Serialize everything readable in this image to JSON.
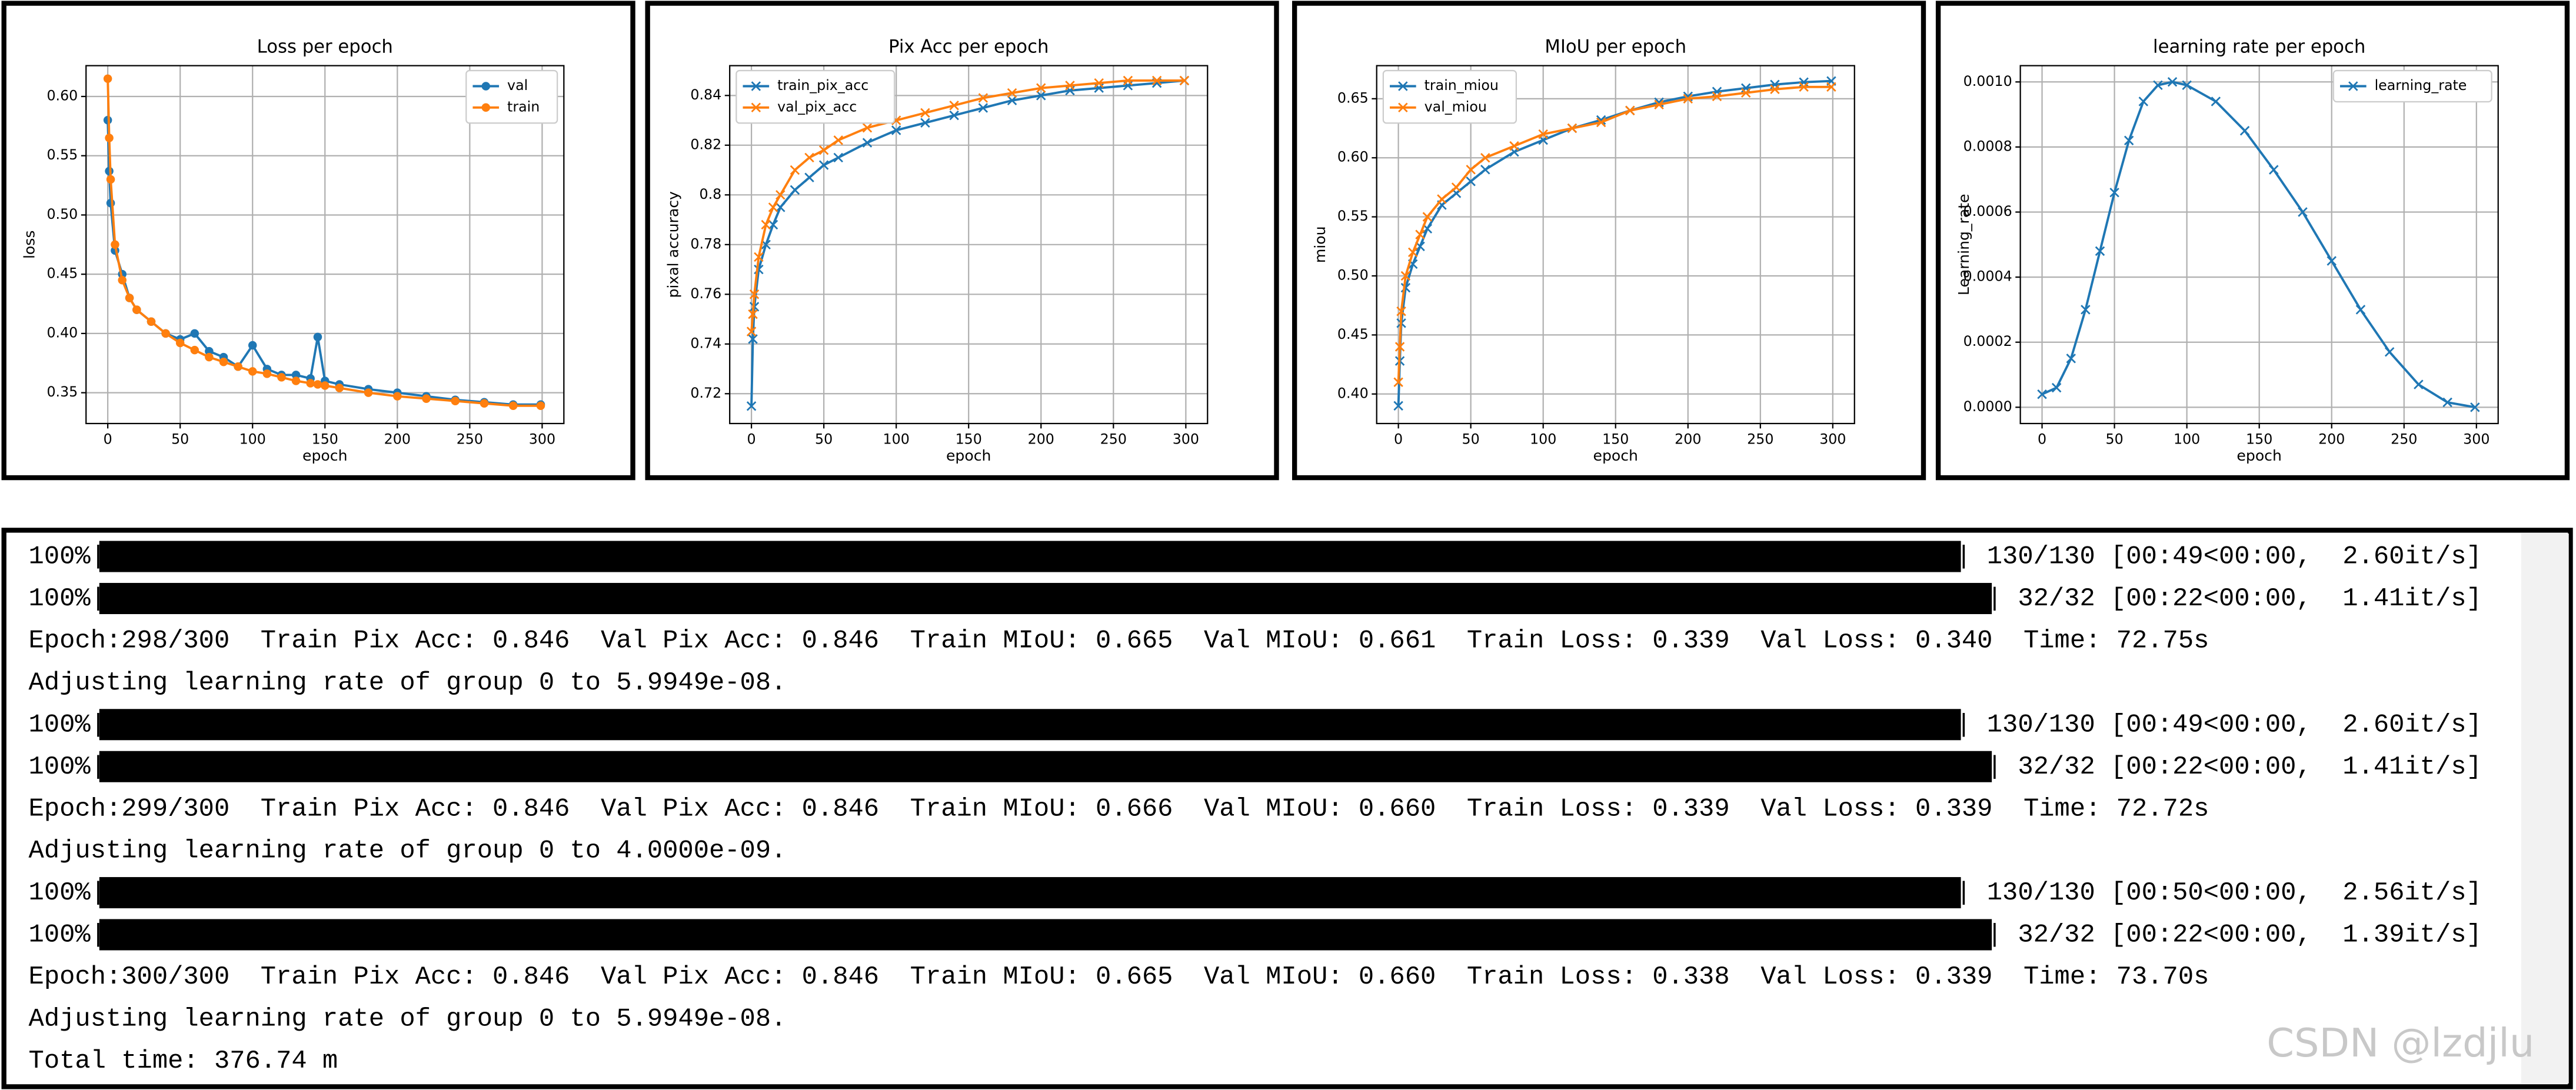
{
  "chart_data": [
    {
      "type": "line",
      "title": "Loss per epoch",
      "xlabel": "epoch",
      "ylabel": "loss",
      "x": [
        0,
        1,
        2,
        5,
        10,
        15,
        20,
        30,
        40,
        50,
        60,
        70,
        80,
        90,
        100,
        110,
        120,
        130,
        140,
        145,
        150,
        160,
        180,
        200,
        220,
        240,
        260,
        280,
        299
      ],
      "series": [
        {
          "name": "val",
          "color": "#1f77b4",
          "marker": "o",
          "values": [
            0.58,
            0.537,
            0.51,
            0.47,
            0.45,
            0.43,
            0.42,
            0.41,
            0.4,
            0.395,
            0.4,
            0.385,
            0.38,
            0.372,
            0.39,
            0.37,
            0.365,
            0.365,
            0.362,
            0.397,
            0.36,
            0.357,
            0.353,
            0.35,
            0.347,
            0.344,
            0.342,
            0.34,
            0.34
          ]
        },
        {
          "name": "train",
          "color": "#ff7f0e",
          "marker": "o",
          "values": [
            0.615,
            0.565,
            0.53,
            0.475,
            0.445,
            0.43,
            0.42,
            0.41,
            0.4,
            0.392,
            0.386,
            0.38,
            0.376,
            0.372,
            0.368,
            0.366,
            0.363,
            0.36,
            0.358,
            0.357,
            0.356,
            0.354,
            0.35,
            0.347,
            0.345,
            0.343,
            0.341,
            0.339,
            0.339
          ]
        }
      ],
      "xlim": [
        -15,
        315
      ],
      "xticks": [
        0,
        50,
        100,
        150,
        200,
        250,
        300
      ],
      "ylim": [
        0.324,
        0.626
      ],
      "yticks": [
        0.35,
        {
          "value": 0.4,
          "label": "0.40"
        },
        0.45,
        {
          "value": 0.5,
          "label": "0.50"
        },
        0.55,
        {
          "value": 0.6,
          "label": "0.60"
        }
      ],
      "grid": true,
      "legend": "upper right"
    },
    {
      "type": "line",
      "title": "Pix Acc per epoch",
      "xlabel": "epoch",
      "ylabel": "pixal accuracy",
      "x": [
        0,
        1,
        2,
        5,
        10,
        15,
        20,
        30,
        40,
        50,
        60,
        80,
        100,
        120,
        140,
        160,
        180,
        200,
        220,
        240,
        260,
        280,
        299
      ],
      "series": [
        {
          "name": "train_pix_acc",
          "color": "#1f77b4",
          "marker": "x",
          "values": [
            0.715,
            0.742,
            0.755,
            0.77,
            0.78,
            0.788,
            0.795,
            0.802,
            0.807,
            0.812,
            0.815,
            0.821,
            0.826,
            0.829,
            0.832,
            0.835,
            0.838,
            0.84,
            0.842,
            0.843,
            0.844,
            0.845,
            0.846
          ]
        },
        {
          "name": "val_pix_acc",
          "color": "#ff7f0e",
          "marker": "x",
          "values": [
            0.745,
            0.752,
            0.76,
            0.775,
            0.788,
            0.795,
            0.8,
            0.81,
            0.815,
            0.818,
            0.822,
            0.827,
            0.83,
            0.833,
            0.836,
            0.839,
            0.841,
            0.843,
            0.844,
            0.845,
            0.846,
            0.846,
            0.846
          ]
        }
      ],
      "xlim": [
        -15,
        315
      ],
      "xticks": [
        0,
        50,
        100,
        150,
        200,
        250,
        300
      ],
      "ylim": [
        0.708,
        0.852
      ],
      "yticks": [
        0.72,
        0.74,
        0.76,
        0.78,
        0.8,
        0.82,
        0.84
      ],
      "grid": true,
      "legend": "upper left"
    },
    {
      "type": "line",
      "title": "MIoU per epoch",
      "xlabel": "epoch",
      "ylabel": "miou",
      "x": [
        0,
        1,
        2,
        5,
        10,
        15,
        20,
        30,
        40,
        50,
        60,
        80,
        100,
        120,
        140,
        160,
        180,
        200,
        220,
        240,
        260,
        280,
        299
      ],
      "series": [
        {
          "name": "train_miou",
          "color": "#1f77b4",
          "marker": "x",
          "values": [
            0.39,
            0.428,
            0.46,
            0.49,
            0.51,
            0.525,
            0.54,
            0.56,
            0.57,
            0.58,
            0.59,
            0.605,
            0.615,
            0.625,
            0.632,
            0.64,
            0.647,
            0.652,
            0.656,
            0.659,
            0.662,
            0.664,
            0.665
          ]
        },
        {
          "name": "val_miou",
          "color": "#ff7f0e",
          "marker": "x",
          "values": [
            0.41,
            0.44,
            0.47,
            0.5,
            0.52,
            0.535,
            0.55,
            0.565,
            0.575,
            0.59,
            0.6,
            0.61,
            0.62,
            0.625,
            0.63,
            0.64,
            0.645,
            0.65,
            0.652,
            0.655,
            0.658,
            0.66,
            0.66
          ]
        }
      ],
      "xlim": [
        -15,
        315
      ],
      "xticks": [
        0,
        50,
        100,
        150,
        200,
        250,
        300
      ],
      "ylim": [
        0.375,
        0.678
      ],
      "yticks": [
        {
          "value": 0.4,
          "label": "0.40"
        },
        0.45,
        {
          "value": 0.5,
          "label": "0.50"
        },
        0.55,
        {
          "value": 0.6,
          "label": "0.60"
        },
        0.65
      ],
      "grid": true,
      "legend": "upper left"
    },
    {
      "type": "line",
      "title": "learning rate per epoch",
      "xlabel": "epoch",
      "ylabel": "Learning_rate",
      "x": [
        0,
        10,
        20,
        30,
        40,
        50,
        60,
        70,
        80,
        90,
        100,
        120,
        140,
        160,
        180,
        200,
        220,
        240,
        260,
        280,
        299
      ],
      "series": [
        {
          "name": "learning_rate",
          "color": "#1f77b4",
          "marker": "x",
          "values": [
            4e-05,
            6e-05,
            0.00015,
            0.0003,
            0.00048,
            0.00066,
            0.00082,
            0.00094,
            0.00099,
            0.001,
            0.00099,
            0.00094,
            0.00085,
            0.00073,
            0.0006,
            0.00045,
            0.0003,
            0.00017,
            7e-05,
            1.5e-05,
            0
          ]
        }
      ],
      "xlim": [
        -15,
        315
      ],
      "xticks": [
        0,
        50,
        100,
        150,
        200,
        250,
        300
      ],
      "ylim": [
        -5e-05,
        0.00105
      ],
      "yticks": [
        {
          "value": 0,
          "label": "0.0000"
        },
        {
          "value": 0.0002,
          "label": "0.0002"
        },
        {
          "value": 0.0004,
          "label": "0.0004"
        },
        {
          "value": 0.0006,
          "label": "0.0006"
        },
        {
          "value": 0.0008,
          "label": "0.0008"
        },
        {
          "value": 0.001,
          "label": "0.0010"
        }
      ],
      "grid": true,
      "legend": "upper right"
    }
  ],
  "terminal": {
    "lines": [
      {
        "left": "100%|",
        "right": "| 130/130 [00:49<00:00,  2.60it/s]"
      },
      {
        "left": "100%|",
        "right": "| 32/32 [00:22<00:00,  1.41it/s]"
      },
      {
        "text": "Epoch:298/300  Train Pix Acc: 0.846  Val Pix Acc: 0.846  Train MIoU: 0.665  Val MIoU: 0.661  Train Loss: 0.339  Val Loss: 0.340  Time: 72.75s"
      },
      {
        "text": "Adjusting learning rate of group 0 to 5.9949e-08."
      },
      {
        "left": "100%|",
        "right": "| 130/130 [00:49<00:00,  2.60it/s]"
      },
      {
        "left": "100%|",
        "right": "| 32/32 [00:22<00:00,  1.41it/s]"
      },
      {
        "text": "Epoch:299/300  Train Pix Acc: 0.846  Val Pix Acc: 0.846  Train MIoU: 0.666  Val MIoU: 0.660  Train Loss: 0.339  Val Loss: 0.339  Time: 72.72s"
      },
      {
        "text": "Adjusting learning rate of group 0 to 4.0000e-09."
      },
      {
        "left": "100%|",
        "right": "| 130/130 [00:50<00:00,  2.56it/s]"
      },
      {
        "left": "100%|",
        "right": "| 32/32 [00:22<00:00,  1.39it/s]"
      },
      {
        "text": "Epoch:300/300  Train Pix Acc: 0.846  Val Pix Acc: 0.846  Train MIoU: 0.665  Val MIoU: 0.660  Train Loss: 0.338  Val Loss: 0.339  Time: 73.70s"
      },
      {
        "text": "Adjusting learning rate of group 0 to 5.9949e-08."
      },
      {
        "text": "Total time: 376.74 m"
      }
    ]
  },
  "watermark": "CSDN @lzdjlu"
}
